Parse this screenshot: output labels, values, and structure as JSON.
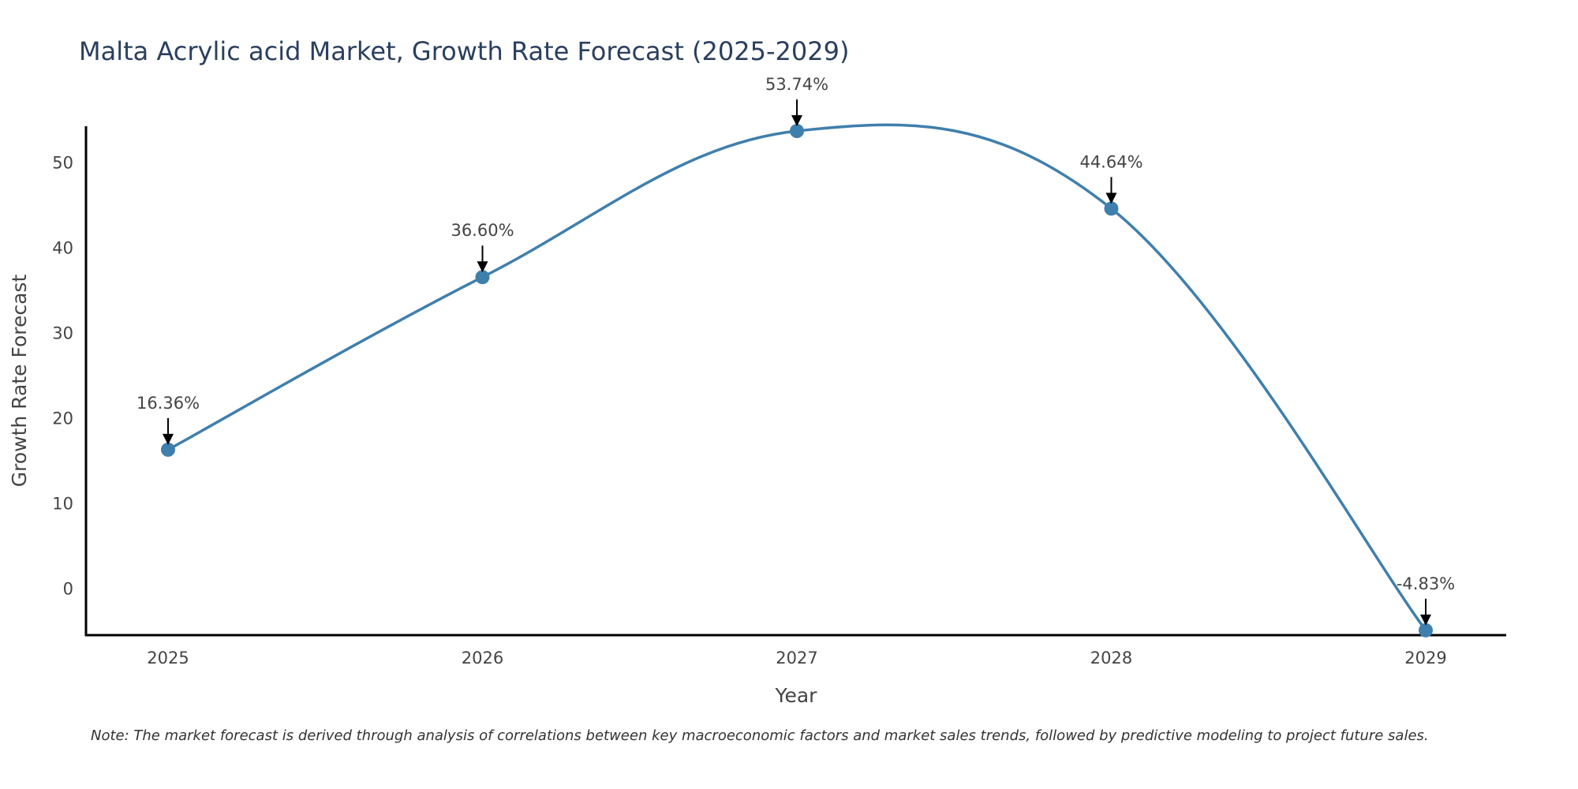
{
  "title": "Malta Acrylic acid Market, Growth Rate Forecast (2025-2029)",
  "note": "Note: The market forecast is derived through analysis of correlations between key macroeconomic factors and market sales trends, followed by predictive modeling to project future sales.",
  "colors": {
    "line": "#3f7fad",
    "marker": "#3f7fad",
    "arrow": "#000000",
    "axis": "#000000"
  },
  "chart_data": {
    "type": "line",
    "title": "Malta Acrylic acid Market, Growth Rate Forecast (2025-2029)",
    "xlabel": "Year",
    "ylabel": "Growth Rate Forecast",
    "categories": [
      "2025",
      "2026",
      "2027",
      "2028",
      "2029"
    ],
    "values": [
      16.36,
      36.6,
      53.74,
      44.64,
      -4.83
    ],
    "data_labels": [
      "16.36%",
      "36.60%",
      "53.74%",
      "44.64%",
      "-4.83%"
    ],
    "yticks": [
      0,
      10,
      20,
      30,
      40,
      50
    ],
    "ytick_labels": [
      "0",
      "10",
      "20",
      "30",
      "40",
      "50"
    ],
    "ylim": [
      -5.4,
      54.3
    ],
    "grid": false,
    "line_shape": "spline"
  }
}
